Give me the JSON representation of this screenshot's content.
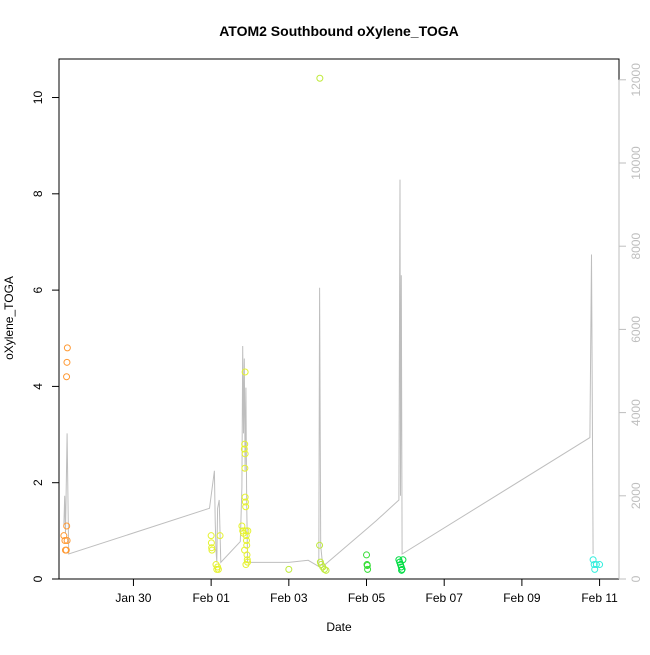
{
  "chart_data": {
    "type": "scatter",
    "title": "ATOM2 Southbound oXylene_TOGA",
    "xlabel": "Date",
    "ylabel": "oXylene_TOGA",
    "x_range": [
      "2017-01-28T02:00",
      "2017-02-11T12:00"
    ],
    "ylim": [
      0,
      10.8
    ],
    "y2lim": [
      0,
      12500
    ],
    "x_ticks": [
      {
        "date": "2017-01-30",
        "label": "Jan 30"
      },
      {
        "date": "2017-02-01",
        "label": "Feb 01"
      },
      {
        "date": "2017-02-03",
        "label": "Feb 03"
      },
      {
        "date": "2017-02-05",
        "label": "Feb 05"
      },
      {
        "date": "2017-02-07",
        "label": "Feb 07"
      },
      {
        "date": "2017-02-09",
        "label": "Feb 09"
      },
      {
        "date": "2017-02-11",
        "label": "Feb 11"
      }
    ],
    "y_ticks": [
      0,
      2,
      4,
      6,
      8,
      10
    ],
    "y2_ticks": [
      0,
      2000,
      4000,
      6000,
      8000,
      10000,
      12000
    ],
    "grid": false,
    "legend": "none",
    "marker": "open circle",
    "line_color": "#bebebe",
    "y2_axis_color": "#bebebe",
    "series": [
      {
        "color": "#ff9933",
        "points": [
          [
            "2017-01-28T05:00",
            0.9
          ],
          [
            "2017-01-28T05:40",
            0.8
          ],
          [
            "2017-01-28T06:00",
            0.6
          ],
          [
            "2017-01-28T06:30",
            0.6
          ],
          [
            "2017-01-28T07:00",
            0.8
          ],
          [
            "2017-01-28T06:45",
            1.1
          ],
          [
            "2017-01-28T07:10",
            4.8
          ],
          [
            "2017-01-28T06:55",
            4.5
          ],
          [
            "2017-01-28T06:40",
            4.2
          ]
        ]
      },
      {
        "color": "#e5f230",
        "points": [
          [
            "2017-02-01T00:00",
            0.9
          ],
          [
            "2017-02-01T00:10",
            0.75
          ],
          [
            "2017-02-01T00:20",
            0.65
          ],
          [
            "2017-02-01T00:30",
            0.6
          ],
          [
            "2017-02-01T03:00",
            0.3
          ],
          [
            "2017-02-01T03:30",
            0.2
          ],
          [
            "2017-02-01T04:00",
            0.25
          ],
          [
            "2017-02-01T04:30",
            0.2
          ],
          [
            "2017-02-01T05:30",
            0.9
          ],
          [
            "2017-02-01T19:00",
            1.1
          ],
          [
            "2017-02-01T19:30",
            1.0
          ],
          [
            "2017-02-01T20:00",
            0.95
          ],
          [
            "2017-02-01T20:30",
            2.7
          ],
          [
            "2017-02-01T20:45",
            2.8
          ],
          [
            "2017-02-01T21:00",
            2.6
          ],
          [
            "2017-02-01T20:50",
            2.3
          ],
          [
            "2017-02-01T21:00",
            1.7
          ],
          [
            "2017-02-01T21:10",
            1.6
          ],
          [
            "2017-02-01T21:20",
            1.5
          ],
          [
            "2017-02-01T21:30",
            1.0
          ],
          [
            "2017-02-01T21:40",
            0.9
          ],
          [
            "2017-02-01T21:50",
            0.8
          ],
          [
            "2017-02-01T22:00",
            0.7
          ],
          [
            "2017-02-01T22:10",
            0.5
          ],
          [
            "2017-02-01T22:20",
            0.4
          ],
          [
            "2017-02-01T22:30",
            0.35
          ],
          [
            "2017-02-01T21:30",
            0.3
          ],
          [
            "2017-02-01T21:00",
            4.3
          ],
          [
            "2017-02-01T22:40",
            1.0
          ],
          [
            "2017-02-01T20:40",
            0.6
          ]
        ]
      },
      {
        "color": "#bfea3a",
        "points": [
          [
            "2017-02-03T00:00",
            0.2
          ],
          [
            "2017-02-03T19:00",
            0.7
          ],
          [
            "2017-02-03T19:30",
            0.35
          ],
          [
            "2017-02-03T20:00",
            0.3
          ],
          [
            "2017-02-03T21:00",
            0.25
          ],
          [
            "2017-02-03T22:00",
            0.2
          ],
          [
            "2017-02-03T23:00",
            0.18
          ],
          [
            "2017-02-03T19:10",
            10.4
          ]
        ]
      },
      {
        "color": "#33dd33",
        "points": [
          [
            "2017-02-05T00:00",
            0.5
          ],
          [
            "2017-02-05T00:20",
            0.3
          ],
          [
            "2017-02-05T00:40",
            0.2
          ],
          [
            "2017-02-05T00:30",
            0.28
          ]
        ]
      },
      {
        "color": "#00dd44",
        "points": [
          [
            "2017-02-05T20:00",
            0.4
          ],
          [
            "2017-02-05T20:30",
            0.35
          ],
          [
            "2017-02-05T21:00",
            0.3
          ],
          [
            "2017-02-05T21:30",
            0.25
          ],
          [
            "2017-02-05T22:00",
            0.2
          ],
          [
            "2017-02-05T22:30",
            0.4
          ],
          [
            "2017-02-05T21:40",
            0.18
          ]
        ]
      },
      {
        "color": "#33eedd",
        "points": [
          [
            "2017-02-10T20:00",
            0.4
          ],
          [
            "2017-02-10T20:40",
            0.3
          ],
          [
            "2017-02-10T21:00",
            0.2
          ],
          [
            "2017-02-10T22:00",
            0.3
          ],
          [
            "2017-02-11T00:00",
            0.3
          ]
        ]
      }
    ],
    "secondary_line": [
      [
        "2017-01-28T05:00",
        1300
      ],
      [
        "2017-01-28T05:30",
        2000
      ],
      [
        "2017-01-28T06:00",
        1100
      ],
      [
        "2017-01-28T07:00",
        3500
      ],
      [
        "2017-01-28T08:00",
        600
      ],
      [
        "2017-01-31T23:00",
        1700
      ],
      [
        "2017-02-01T02:00",
        2600
      ],
      [
        "2017-02-01T02:30",
        1400
      ],
      [
        "2017-02-01T03:00",
        700
      ],
      [
        "2017-02-01T03:30",
        400
      ],
      [
        "2017-02-01T04:00",
        1700
      ],
      [
        "2017-02-01T05:00",
        1900
      ],
      [
        "2017-02-01T06:00",
        400
      ],
      [
        "2017-02-01T18:00",
        900
      ],
      [
        "2017-02-01T19:00",
        2200
      ],
      [
        "2017-02-01T19:30",
        5600
      ],
      [
        "2017-02-01T20:00",
        3500
      ],
      [
        "2017-02-01T20:30",
        5300
      ],
      [
        "2017-02-01T21:00",
        2600
      ],
      [
        "2017-02-01T21:30",
        4600
      ],
      [
        "2017-02-01T22:00",
        1800
      ],
      [
        "2017-02-01T22:30",
        400
      ],
      [
        "2017-02-03T00:00",
        400
      ],
      [
        "2017-02-03T12:00",
        450
      ],
      [
        "2017-02-03T18:30",
        300
      ],
      [
        "2017-02-03T19:00",
        7000
      ],
      [
        "2017-02-03T19:40",
        800
      ],
      [
        "2017-02-03T21:00",
        300
      ],
      [
        "2017-02-05T00:00",
        1200
      ],
      [
        "2017-02-05T06:00",
        1400
      ],
      [
        "2017-02-05T20:00",
        1900
      ],
      [
        "2017-02-05T20:40",
        9600
      ],
      [
        "2017-02-05T21:00",
        2000
      ],
      [
        "2017-02-05T21:30",
        7300
      ],
      [
        "2017-02-05T22:00",
        600
      ],
      [
        "2017-02-10T18:00",
        3400
      ],
      [
        "2017-02-10T19:00",
        7800
      ],
      [
        "2017-02-10T20:00",
        600
      ]
    ]
  }
}
